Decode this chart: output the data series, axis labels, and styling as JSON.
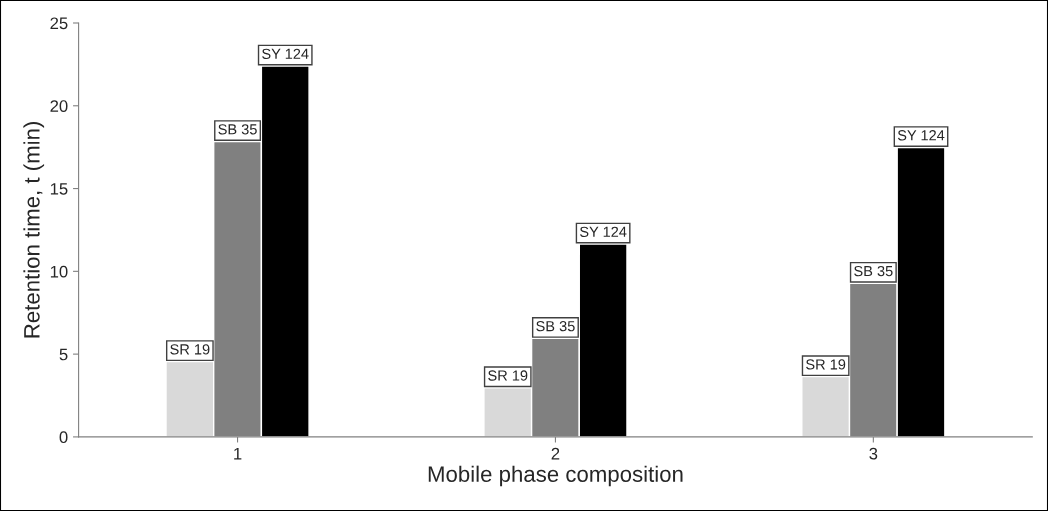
{
  "chart_data": {
    "type": "bar",
    "xlabel": "Mobile phase composition",
    "ylabel": "Retention time, t (min)",
    "categories": [
      "1",
      "2",
      "3"
    ],
    "series": [
      {
        "name": "SR 19",
        "color": "#d9d9d9",
        "values": [
          4.55,
          2.97,
          3.64
        ]
      },
      {
        "name": "SB 35",
        "color": "#808080",
        "values": [
          17.84,
          5.95,
          9.28
        ]
      },
      {
        "name": "SY 124",
        "color": "#000000",
        "values": [
          22.4,
          11.65,
          17.48
        ]
      }
    ],
    "ylim": [
      0,
      25
    ],
    "yticks": [
      0,
      5,
      10,
      15,
      20,
      25
    ],
    "grid": false,
    "legend": false
  }
}
